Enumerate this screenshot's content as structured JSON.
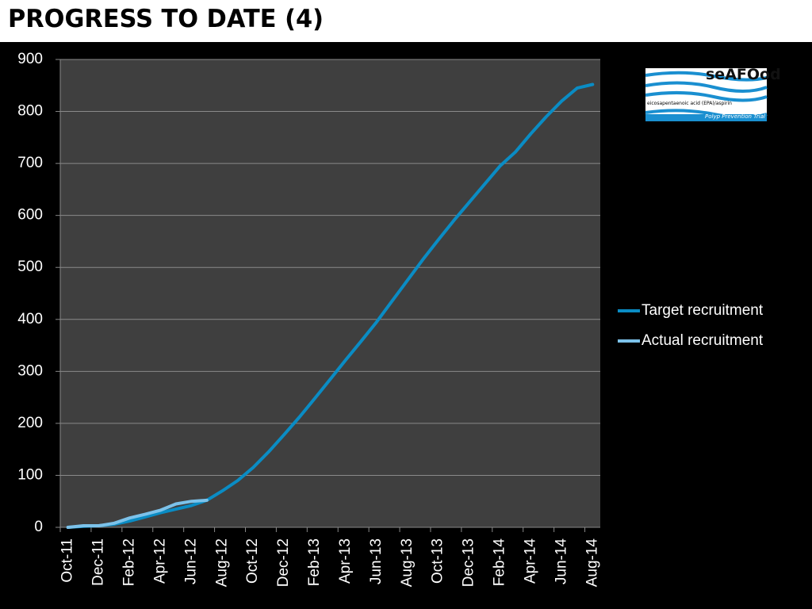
{
  "chart_data": {
    "type": "line",
    "title": "PROGRESS TO DATE (4)",
    "categories": [
      "Oct-11",
      null,
      "Dec-11",
      null,
      "Feb-12",
      null,
      "Apr-12",
      null,
      "Jun-12",
      null,
      "Aug-12",
      null,
      "Oct-12",
      null,
      "Dec-12",
      null,
      "Feb-13",
      null,
      "Apr-13",
      null,
      "Jun-13",
      null,
      "Aug-13",
      null,
      "Oct-13",
      null,
      "Dec-13",
      null,
      "Feb-14",
      null,
      "Apr-14",
      null,
      "Jun-14",
      null,
      "Aug-14"
    ],
    "series": [
      {
        "name": "Target recruitment",
        "color": "#0a8cc4",
        "values": [
          0,
          2,
          3,
          6,
          12,
          20,
          28,
          35,
          42,
          52,
          70,
          90,
          115,
          145,
          178,
          212,
          248,
          285,
          322,
          358,
          395,
          435,
          475,
          515,
          553,
          590,
          625,
          660,
          695,
          722,
          757,
          790,
          820,
          845,
          852
        ]
      },
      {
        "name": "Actual recruitment",
        "color": "#7cc2ea",
        "values": [
          0,
          3,
          3,
          8,
          18,
          25,
          33,
          45,
          50,
          52,
          null,
          null,
          null,
          null,
          null,
          null,
          null,
          null,
          null,
          null,
          null,
          null,
          null,
          null,
          null,
          null,
          null,
          null,
          null,
          null,
          null,
          null,
          null,
          null,
          null
        ]
      }
    ],
    "ylim": [
      0,
      900
    ],
    "yticks": [
      0,
      100,
      200,
      300,
      400,
      500,
      600,
      700,
      800,
      900
    ],
    "grid": true,
    "legend": "right"
  },
  "logo": {
    "name": "seAFOod",
    "subtitle": "eicosapentaenoic acid (EPA)/aspirin",
    "tagline": "Polyp Prevention Trial"
  }
}
